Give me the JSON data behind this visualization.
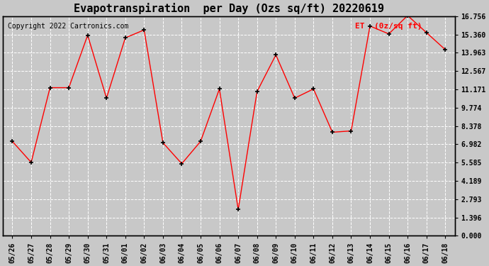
{
  "title": "Evapotranspiration  per Day (Ozs sq/ft) 20220619",
  "copyright": "Copyright 2022 Cartronics.com",
  "legend_label": "ET  (0z/sq ft)",
  "x_labels": [
    "05/26",
    "05/27",
    "05/28",
    "05/29",
    "05/30",
    "05/31",
    "06/01",
    "06/02",
    "06/03",
    "06/04",
    "06/05",
    "06/06",
    "06/07",
    "06/08",
    "06/09",
    "06/10",
    "06/11",
    "06/12",
    "06/13",
    "06/14",
    "06/15",
    "06/16",
    "06/17",
    "06/18"
  ],
  "y_values": [
    7.2,
    5.6,
    11.3,
    11.3,
    15.3,
    10.5,
    15.1,
    15.7,
    7.1,
    5.5,
    7.2,
    11.2,
    2.0,
    11.0,
    13.8,
    10.5,
    11.2,
    7.9,
    8.0,
    16.0,
    15.4,
    16.8,
    15.5,
    14.2
  ],
  "y_ticks": [
    0.0,
    1.396,
    2.793,
    4.189,
    5.585,
    6.982,
    8.378,
    9.774,
    11.171,
    12.567,
    13.963,
    15.36,
    16.756
  ],
  "y_min": 0.0,
  "y_max": 16.756,
  "line_color": "red",
  "marker_color": "black",
  "marker": "+",
  "fig_bg_color": "#c8c8c8",
  "plot_bg_color": "#c8c8c8",
  "grid_color": "white",
  "title_fontsize": 11,
  "copyright_fontsize": 7,
  "legend_color": "red",
  "legend_fontsize": 8,
  "tick_fontsize": 7,
  "border_color": "black"
}
